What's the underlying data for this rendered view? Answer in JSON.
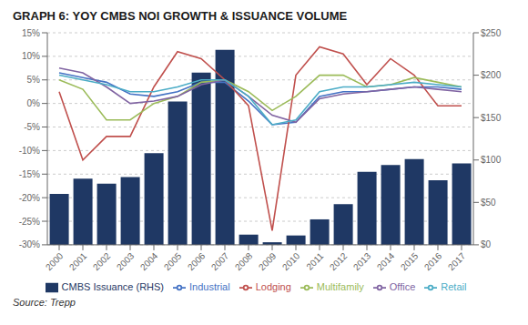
{
  "chart_data": {
    "type": "bar",
    "title": "GRAPH 6: YOY CMBS NOI GROWTH & ISSUANCE VOLUME",
    "annotation": "Source: Trepp",
    "categories": [
      "2000",
      "2001",
      "2002",
      "2003",
      "2004",
      "2005",
      "2006",
      "2007",
      "2008",
      "2009",
      "2010",
      "2011",
      "2012",
      "2013",
      "2014",
      "2015",
      "2016",
      "2017"
    ],
    "series": [
      {
        "name": "CMBS Issuance (RHS)",
        "type": "bar",
        "axis": "y2",
        "color": "#1F3864",
        "values": [
          60,
          78,
          72,
          80,
          108,
          169,
          203,
          230,
          12,
          3,
          11,
          30,
          48,
          86,
          94,
          101,
          76,
          96
        ]
      },
      {
        "name": "Industrial",
        "type": "line",
        "color": "#4472C4",
        "values": [
          6.5,
          5.5,
          4.5,
          2.0,
          1.5,
          2.5,
          4.5,
          4.5,
          0.5,
          -4.5,
          -4.0,
          1.5,
          2.5,
          2.5,
          3.0,
          3.5,
          3.5,
          3.0
        ]
      },
      {
        "name": "Lodging",
        "type": "line",
        "color": "#C0504D",
        "values": [
          2.5,
          -12.0,
          -7.0,
          -7.0,
          3.5,
          11.0,
          9.5,
          5.0,
          -0.5,
          -27.0,
          6.0,
          12.0,
          10.5,
          4.0,
          9.5,
          6.0,
          -0.5,
          -0.5
        ]
      },
      {
        "name": "Multifamily",
        "type": "line",
        "color": "#9BBB59",
        "values": [
          5.0,
          3.0,
          -3.5,
          -3.5,
          0.0,
          1.5,
          4.5,
          5.0,
          2.5,
          -1.5,
          1.5,
          6.0,
          6.0,
          3.5,
          4.0,
          5.5,
          4.5,
          3.5
        ]
      },
      {
        "name": "Office",
        "type": "line",
        "color": "#8064A2",
        "values": [
          7.5,
          6.5,
          3.5,
          0.0,
          0.5,
          1.5,
          4.0,
          5.0,
          1.5,
          -2.5,
          -4.0,
          1.0,
          2.0,
          2.5,
          3.0,
          3.5,
          3.0,
          2.5
        ]
      },
      {
        "name": "Retail",
        "type": "line",
        "color": "#4BACC6",
        "values": [
          6.0,
          5.0,
          4.0,
          2.5,
          2.5,
          3.5,
          5.0,
          5.0,
          1.5,
          -4.5,
          -3.5,
          2.5,
          3.5,
          3.5,
          4.0,
          4.5,
          4.0,
          3.5
        ]
      }
    ],
    "ylim": [
      -30,
      15
    ],
    "yticks": [
      {
        "value": -30,
        "label": "-30%"
      },
      {
        "value": -25,
        "label": "-25%"
      },
      {
        "value": -20,
        "label": "-20%"
      },
      {
        "value": -15,
        "label": "-15%"
      },
      {
        "value": -10,
        "label": "-10%"
      },
      {
        "value": -5,
        "label": "-5%"
      },
      {
        "value": 0,
        "label": "0%"
      },
      {
        "value": 5,
        "label": "5%"
      },
      {
        "value": 10,
        "label": "10%"
      },
      {
        "value": 15,
        "label": "15%"
      }
    ],
    "y2lim": [
      0,
      250
    ],
    "y2ticks": [
      {
        "value": 0,
        "label": "$0"
      },
      {
        "value": 50,
        "label": "$50"
      },
      {
        "value": 100,
        "label": "$100"
      },
      {
        "value": 150,
        "label": "$150"
      },
      {
        "value": 200,
        "label": "$200"
      },
      {
        "value": 250,
        "label": "$250"
      }
    ],
    "grid": true,
    "legend": "bottom"
  }
}
